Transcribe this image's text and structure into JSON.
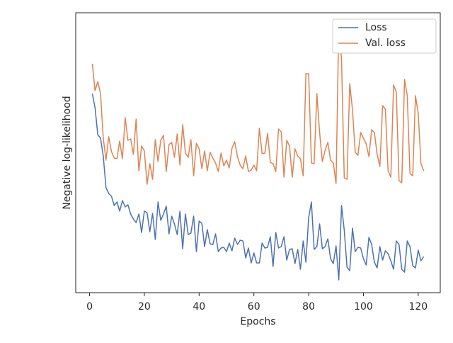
{
  "chart_data": {
    "type": "line",
    "xlabel": "Epochs",
    "ylabel": "Negative log-likelihood",
    "x": [
      1,
      2,
      3,
      4,
      5,
      6,
      7,
      8,
      9,
      10,
      11,
      12,
      13,
      14,
      15,
      16,
      17,
      18,
      19,
      20,
      21,
      22,
      23,
      24,
      25,
      26,
      27,
      28,
      29,
      30,
      31,
      32,
      33,
      34,
      35,
      36,
      37,
      38,
      39,
      40,
      41,
      42,
      43,
      44,
      45,
      46,
      47,
      48,
      49,
      50,
      51,
      52,
      53,
      54,
      55,
      56,
      57,
      58,
      59,
      60,
      61,
      62,
      63,
      64,
      65,
      66,
      67,
      68,
      69,
      70,
      71,
      72,
      73,
      74,
      75,
      76,
      77,
      78,
      79,
      80,
      81,
      82,
      83,
      84,
      85,
      86,
      87,
      88,
      89,
      90,
      91,
      92,
      93,
      94,
      95,
      96,
      97,
      98,
      99,
      100,
      101,
      102,
      103,
      104,
      105,
      106,
      107,
      108,
      109,
      110,
      111,
      112,
      113,
      114,
      115,
      116,
      117,
      118,
      119,
      120,
      121,
      122
    ],
    "series": [
      {
        "name": "Loss",
        "color": "#4c72b0",
        "values": [
          281,
          261,
          223,
          218,
          193,
          148,
          140,
          136,
          123,
          128,
          115,
          130,
          121,
          124,
          111,
          104,
          99,
          111,
          85,
          115,
          113,
          86,
          112,
          75,
          128,
          102,
          111,
          122,
          83,
          108,
          97,
          82,
          115,
          62,
          111,
          82,
          84,
          108,
          58,
          101,
          98,
          65,
          89,
          69,
          68,
          83,
          58,
          63,
          64,
          58,
          70,
          59,
          77,
          68,
          74,
          73,
          49,
          63,
          42,
          56,
          42,
          42,
          70,
          63,
          64,
          79,
          37,
          85,
          63,
          65,
          79,
          46,
          61,
          62,
          41,
          61,
          33,
          73,
          43,
          106,
          128,
          61,
          65,
          97,
          62,
          65,
          76,
          48,
          41,
          66,
          18,
          123,
          88,
          36,
          31,
          91,
          58,
          64,
          63,
          48,
          39,
          78,
          68,
          43,
          35,
          65,
          46,
          59,
          55,
          45,
          33,
          73,
          68,
          33,
          29,
          73,
          65,
          38,
          35,
          60,
          45,
          51
        ]
      },
      {
        "name": "Val. loss",
        "color": "#dd8452",
        "values": [
          323,
          285,
          298,
          281,
          218,
          187,
          220,
          199,
          190,
          189,
          214,
          189,
          247,
          215,
          217,
          195,
          245,
          172,
          207,
          200,
          153,
          182,
          160,
          216,
          185,
          215,
          222,
          171,
          209,
          212,
          191,
          224,
          180,
          237,
          197,
          191,
          216,
          165,
          211,
          203,
          175,
          200,
          172,
          198,
          190,
          183,
          171,
          197,
          179,
          187,
          176,
          204,
          213,
          192,
          180,
          175,
          193,
          171,
          173,
          180,
          172,
          232,
          196,
          197,
          225,
          184,
          182,
          171,
          231,
          227,
          163,
          215,
          207,
          163,
          203,
          193,
          189,
          165,
          309,
          309,
          183,
          182,
          281,
          226,
          185,
          201,
          212,
          187,
          183,
          154,
          378,
          329,
          162,
          160,
          295,
          258,
          198,
          194,
          226,
          218,
          210,
          192,
          230,
          226,
          195,
          178,
          264,
          259,
          172,
          163,
          293,
          283,
          158,
          155,
          301,
          278,
          168,
          165,
          278,
          253,
          182,
          172
        ]
      }
    ],
    "xlim": [
      -5.05,
      128.05
    ],
    "xticks": [
      0,
      20,
      40,
      60,
      80,
      100,
      120
    ],
    "ylim": [
      0,
      395
    ],
    "legend": "upper right"
  }
}
